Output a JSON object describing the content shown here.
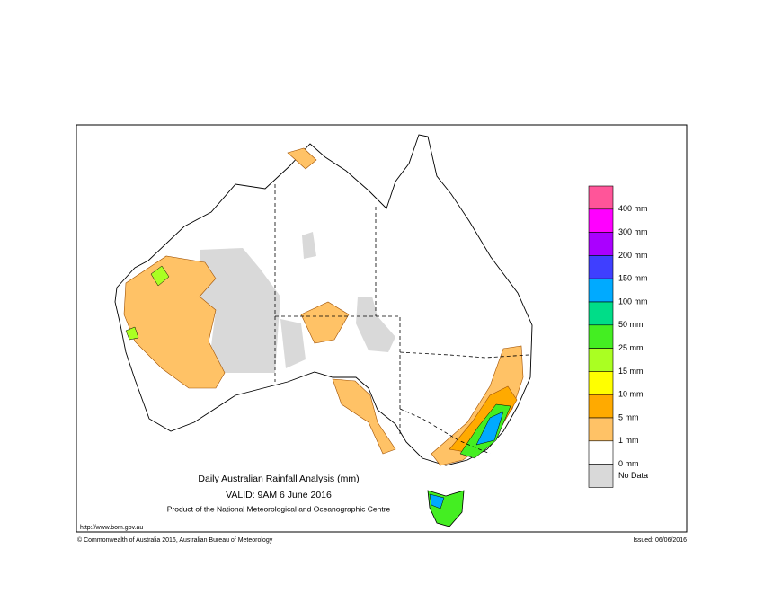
{
  "header": {
    "title": "Daily Australian Rainfall Analysis (mm)",
    "valid": "VALID: 9AM  6 June 2016",
    "product": "Product of the National Meteorological and Oceanographic Centre"
  },
  "footer": {
    "url": "http://www.bom.gov.au",
    "copyright": "© Commonwealth of Australia 2016, Australian Bureau of Meteorology",
    "issued": "Issued: 06/06/2016"
  },
  "legend": {
    "colors": [
      "#ff5599",
      "#ff00ff",
      "#aa00ff",
      "#3f3fff",
      "#00aaff",
      "#00dd88",
      "#44ee22",
      "#aaff22",
      "#ffff00",
      "#ffaa00",
      "#ffc266",
      "#ffffff",
      "#d9d9d9"
    ],
    "labels": [
      "400 mm",
      "300 mm",
      "200 mm",
      "150 mm",
      "100 mm",
      "50 mm",
      "25 mm",
      "15 mm",
      "10 mm",
      "5 mm",
      "1 mm",
      "0 mm",
      "No Data"
    ]
  }
}
